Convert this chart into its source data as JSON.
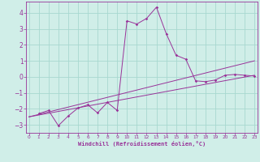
{
  "background_color": "#d0eee8",
  "grid_color": "#a8d8d0",
  "line_color": "#993399",
  "spine_color": "#993399",
  "xlim": [
    -0.3,
    23.3
  ],
  "ylim": [
    -3.5,
    4.7
  ],
  "yticks": [
    -3,
    -2,
    -1,
    0,
    1,
    2,
    3,
    4
  ],
  "xticks": [
    0,
    1,
    2,
    3,
    4,
    5,
    6,
    7,
    8,
    9,
    10,
    11,
    12,
    13,
    14,
    15,
    16,
    17,
    18,
    19,
    20,
    21,
    22,
    23
  ],
  "xlabel": "Windchill (Refroidissement éolien,°C)",
  "curve1_x": [
    1,
    2,
    3,
    4,
    5,
    6,
    7,
    8,
    9,
    10,
    11,
    12,
    13,
    14,
    15,
    16,
    17,
    18,
    19,
    20,
    21,
    22,
    23
  ],
  "curve1_y": [
    -2.3,
    -2.1,
    -3.05,
    -2.45,
    -1.95,
    -1.75,
    -2.25,
    -1.6,
    -2.1,
    3.5,
    3.3,
    3.65,
    4.35,
    2.7,
    1.35,
    1.1,
    -0.25,
    -0.3,
    -0.2,
    0.1,
    0.15,
    0.1,
    0.05
  ],
  "curve2_x": [
    0,
    23
  ],
  "curve2_y": [
    -2.5,
    0.1
  ],
  "curve3_x": [
    0,
    23
  ],
  "curve3_y": [
    -2.5,
    1.0
  ]
}
